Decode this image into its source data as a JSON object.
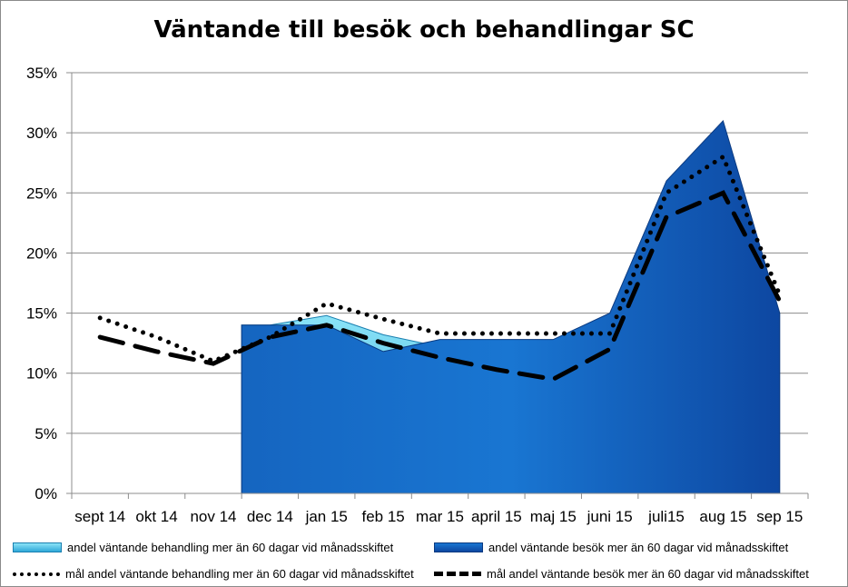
{
  "chart_data": {
    "type": "area",
    "title": "Väntande till besök och behandlingar SC",
    "categories": [
      "sept 14",
      "okt 14",
      "nov 14",
      "dec 14",
      "jan 15",
      "feb 15",
      "mar 15",
      "april 15",
      "maj 15",
      "juni 15",
      "juli15",
      "aug 15",
      "sep 15"
    ],
    "ylim": [
      0,
      0.35
    ],
    "yticks": [
      0,
      0.05,
      0.1,
      0.15,
      0.2,
      0.25,
      0.3,
      0.35
    ],
    "ytick_labels": [
      "0%",
      "5%",
      "10%",
      "15%",
      "20%",
      "25%",
      "30%",
      "35%"
    ],
    "grid": "horizontal",
    "legend_position": "bottom",
    "series": [
      {
        "name": "andel väntande behandling mer än 60 dagar vid månadsskiftet",
        "kind": "area",
        "color": "#4FC3E8",
        "values": [
          null,
          null,
          null,
          0.14,
          0.148,
          0.132,
          0.122,
          0.122,
          0.122,
          0.13,
          null,
          null,
          null
        ]
      },
      {
        "name": "andel väntande besök mer än 60 dagar vid månadsskiftet",
        "kind": "area",
        "color": "#1565C0",
        "values": [
          null,
          null,
          null,
          0.14,
          0.14,
          0.118,
          0.128,
          0.128,
          0.128,
          0.15,
          0.26,
          0.31,
          0.15
        ]
      },
      {
        "name": "mål andel väntande behandling mer än 60 dagar vid månadsskiftet",
        "kind": "dotted-line",
        "color": "#000000",
        "values": [
          0.146,
          0.13,
          0.11,
          0.13,
          0.158,
          0.145,
          0.133,
          0.133,
          0.133,
          0.133,
          0.25,
          0.28,
          0.165
        ]
      },
      {
        "name": "mål andel  väntande besök mer än 60 dagar vid månadsskiftet",
        "kind": "dashed-line",
        "color": "#000000",
        "values": [
          0.13,
          0.118,
          0.108,
          0.13,
          0.14,
          0.125,
          0.113,
          0.103,
          0.095,
          0.12,
          0.23,
          0.25,
          0.16
        ]
      }
    ]
  }
}
